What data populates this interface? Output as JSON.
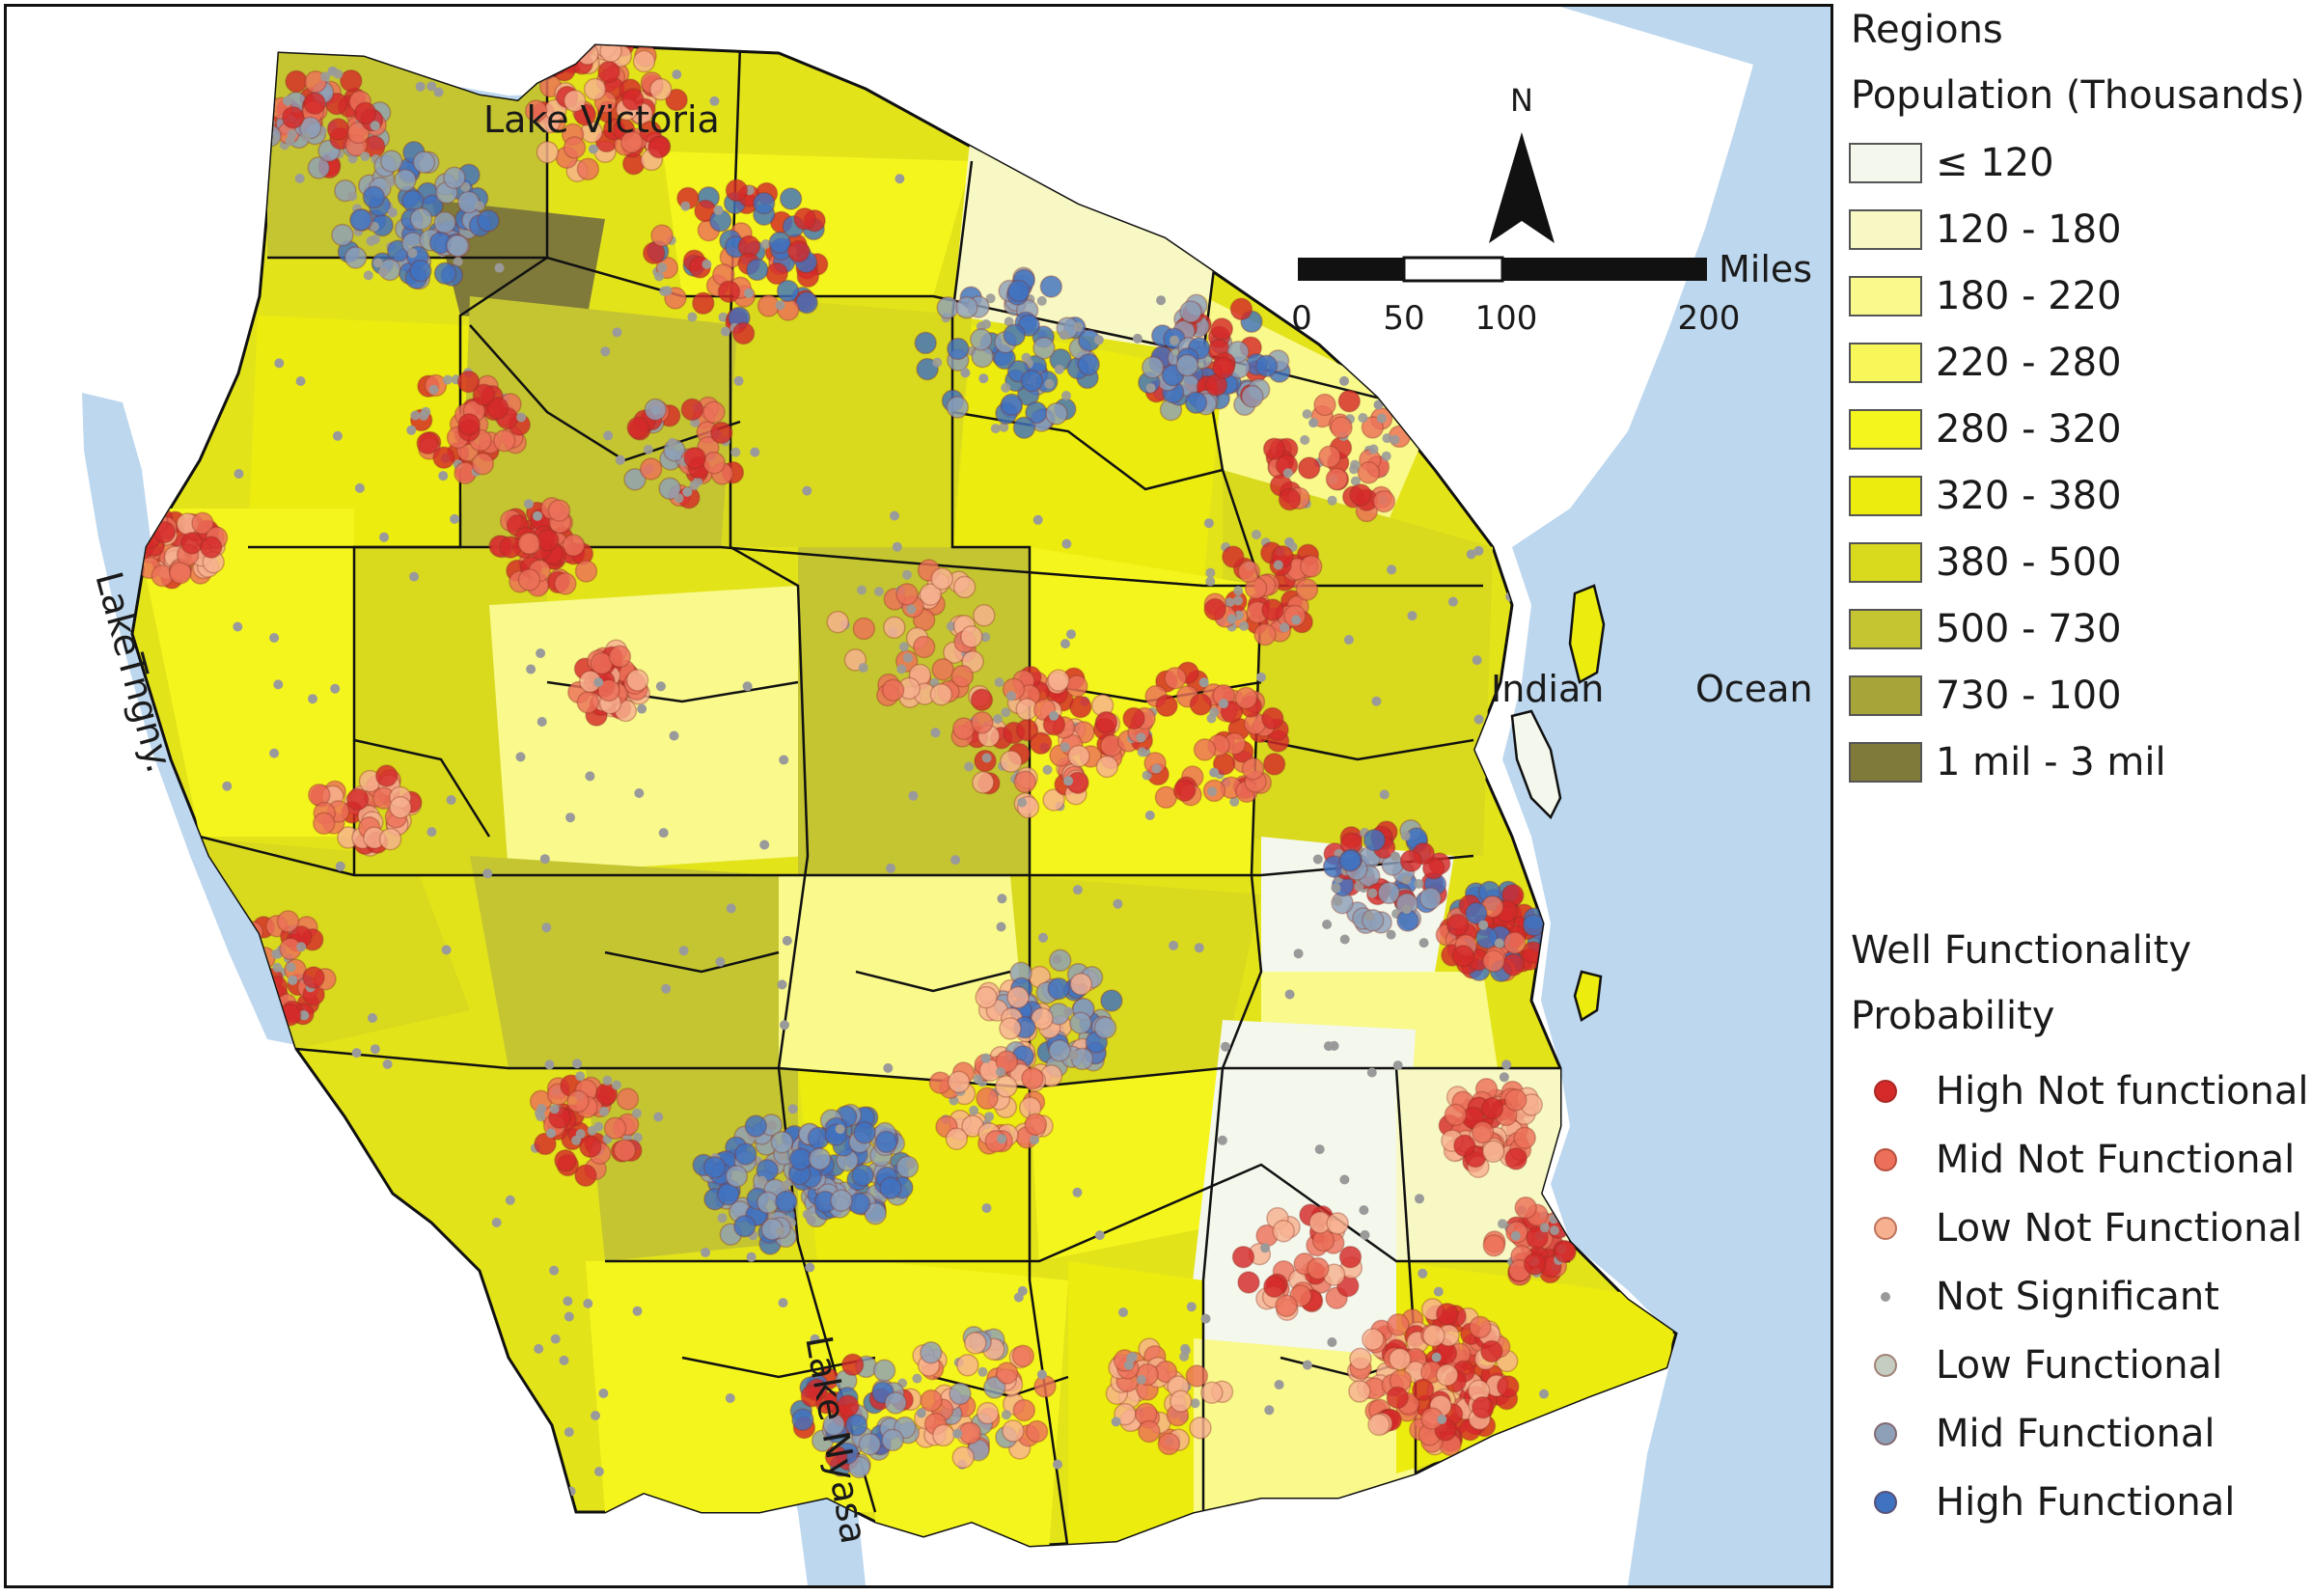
{
  "map": {
    "labels": {
      "lake_victoria": "Lake Victoria",
      "lake_tanganyika": "LakeTngny.",
      "lake_nyasa": "Lake Nyasa",
      "indian": "Indian",
      "ocean": "Ocean",
      "north": "N"
    },
    "scale_bar": {
      "unit": "Miles",
      "ticks": [
        "0",
        "50",
        "100",
        "200"
      ]
    },
    "colors": {
      "water": "#bdd7ee",
      "border": "#111111"
    }
  },
  "legend": {
    "regions_title": "Regions",
    "population_title": "Population (Thousands)",
    "population_classes": [
      {
        "label": "≤ 120",
        "color": "#f4f7ec"
      },
      {
        "label": "120 - 180",
        "color": "#f8f8c4"
      },
      {
        "label": "180 - 220",
        "color": "#f9f98c"
      },
      {
        "label": "220 - 280",
        "color": "#f7f759"
      },
      {
        "label": "280 - 320",
        "color": "#f5f51e"
      },
      {
        "label": "320 - 380",
        "color": "#ecec0f"
      },
      {
        "label": "380 - 500",
        "color": "#d9d91e"
      },
      {
        "label": "500 - 730",
        "color": "#c5c531"
      },
      {
        "label": "730 - 100",
        "color": "#a7a43a"
      },
      {
        "label": "1 mil - 3 mil",
        "color": "#807a3a"
      }
    ],
    "well_title": "Well Functionality",
    "prob_title": "Probability",
    "well_classes": [
      {
        "label": "High Not functional",
        "color": "#d42a2a"
      },
      {
        "label": "Mid Not Functional",
        "color": "#ec7059"
      },
      {
        "label": "Low Not Functional",
        "color": "#f7b190"
      },
      {
        "label": "Not Significant",
        "color": "#9a9a9a"
      },
      {
        "label": "Low Functional",
        "color": "#c4cdc0"
      },
      {
        "label": "Mid Functional",
        "color": "#8ea0b8"
      },
      {
        "label": "High Functional",
        "color": "#3f72c0"
      }
    ]
  }
}
